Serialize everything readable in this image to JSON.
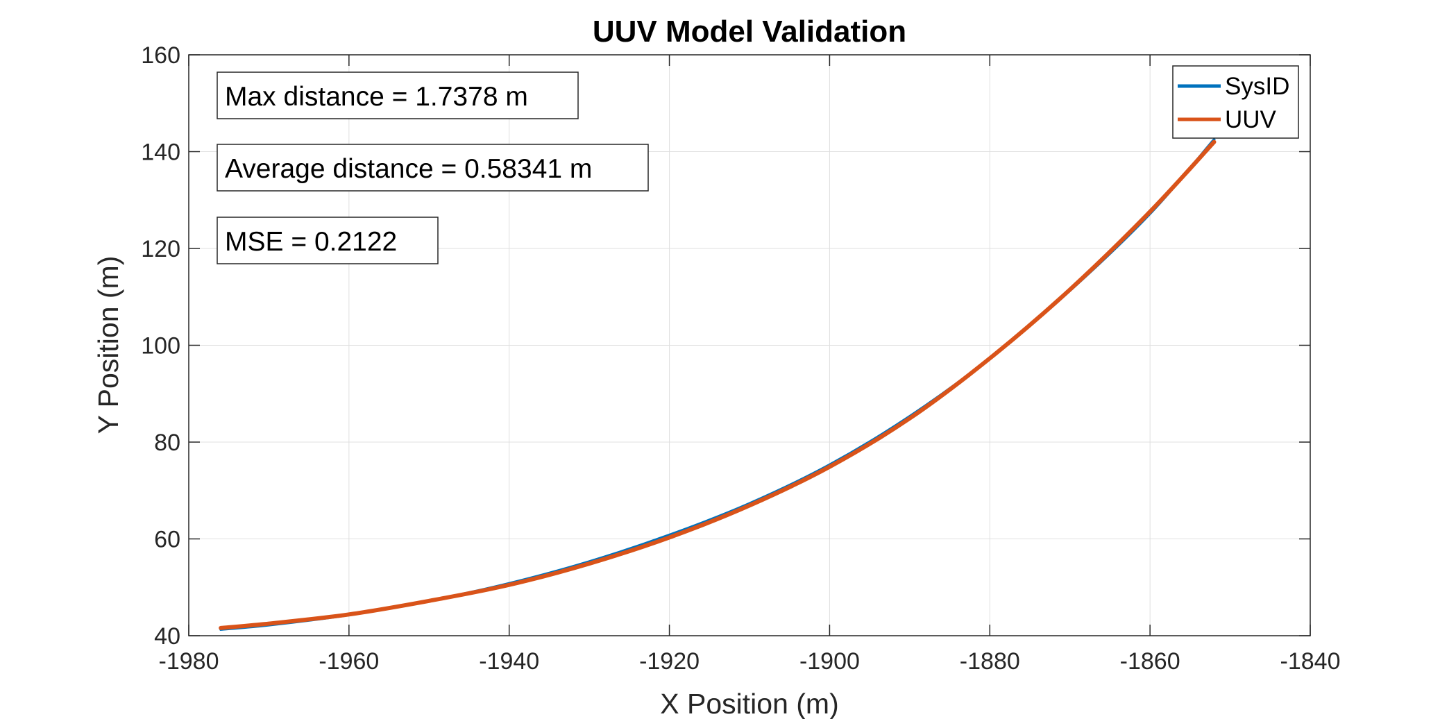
{
  "chart_data": {
    "type": "line",
    "title": "UUV Model Validation",
    "xlabel": "X Position (m)",
    "ylabel": "Y Position (m)",
    "xlim": [
      -1980,
      -1840
    ],
    "ylim": [
      40,
      160
    ],
    "xticks": [
      -1980,
      -1960,
      -1940,
      -1920,
      -1900,
      -1880,
      -1860,
      -1840
    ],
    "yticks": [
      40,
      60,
      80,
      100,
      120,
      140,
      160
    ],
    "xtick_labels": [
      "-1980",
      "-1960",
      "-1940",
      "-1920",
      "-1900",
      "-1880",
      "-1860",
      "-1840"
    ],
    "ytick_labels": [
      "40",
      "60",
      "80",
      "100",
      "120",
      "140",
      "160"
    ],
    "grid": true,
    "legend_position": "top-right",
    "annotations": [
      "Max distance = 1.7378 m",
      "Average distance = 0.58341 m",
      "MSE = 0.2122"
    ],
    "series": [
      {
        "name": "SysID",
        "color": "#0072BD",
        "x": [
          -1976,
          -1970,
          -1960,
          -1950,
          -1940,
          -1930,
          -1920,
          -1910,
          -1900,
          -1890,
          -1880,
          -1870,
          -1860,
          -1852
        ],
        "y": [
          41.3,
          42.2,
          44.3,
          47.2,
          50.8,
          55.3,
          60.8,
          67.3,
          75.3,
          85.3,
          97.3,
          111.3,
          127.2,
          142.5
        ]
      },
      {
        "name": "UUV",
        "color": "#D95319",
        "x": [
          -1976,
          -1970,
          -1960,
          -1950,
          -1940,
          -1930,
          -1920,
          -1910,
          -1900,
          -1890,
          -1880,
          -1870,
          -1860,
          -1852
        ],
        "y": [
          41.6,
          42.5,
          44.4,
          47.2,
          50.5,
          54.9,
          60.3,
          66.9,
          74.9,
          84.9,
          97.3,
          111.5,
          127.6,
          142.0
        ]
      }
    ]
  }
}
